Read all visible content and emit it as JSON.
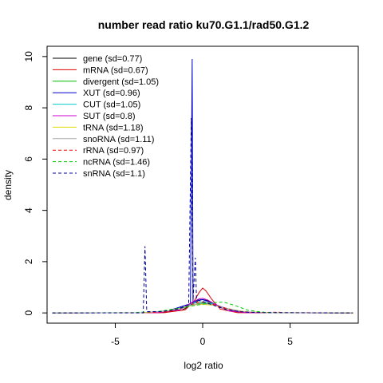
{
  "chart_data": {
    "type": "line",
    "title": "number read ratio ku70.G1.1/rad50.G1.2",
    "xlabel": "log2 ratio",
    "ylabel": "density",
    "xlim": [
      -8.9,
      8.9
    ],
    "ylim": [
      -0.4,
      10.4
    ],
    "xticks": [
      -5,
      0,
      5
    ],
    "xtick_labels": [
      "-5",
      "0",
      "5"
    ],
    "yticks": [
      0,
      2,
      4,
      6,
      8,
      10
    ],
    "ytick_labels": [
      "0",
      "2",
      "4",
      "6",
      "8",
      "10"
    ],
    "legend_position": "top-left",
    "grid": false,
    "series": [
      {
        "name": "gene (sd=0.77)",
        "color": "#000000",
        "dash": false,
        "mu": 0.0,
        "sd": 0.77,
        "points": [
          [
            -8.6,
            0
          ],
          [
            -2.5,
            0.01
          ],
          [
            -1.2,
            0.1
          ],
          [
            -0.6,
            0.33
          ],
          [
            -0.2,
            0.5
          ],
          [
            0.0,
            0.52
          ],
          [
            0.3,
            0.48
          ],
          [
            0.8,
            0.3
          ],
          [
            1.5,
            0.08
          ],
          [
            2.5,
            0.01
          ],
          [
            8.6,
            0
          ]
        ]
      },
      {
        "name": "mRNA (sd=0.67)",
        "color": "#dd0000",
        "dash": false,
        "mu": 0.0,
        "sd": 0.67,
        "points": [
          [
            -8.6,
            0
          ],
          [
            -2.2,
            0.01
          ],
          [
            -1.0,
            0.12
          ],
          [
            -0.5,
            0.45
          ],
          [
            -0.2,
            0.8
          ],
          [
            0.0,
            0.97
          ],
          [
            0.2,
            0.85
          ],
          [
            0.5,
            0.55
          ],
          [
            1.0,
            0.15
          ],
          [
            2.0,
            0.01
          ],
          [
            8.6,
            0
          ]
        ]
      },
      {
        "name": "divergent (sd=1.05)",
        "color": "#00bb00",
        "dash": false,
        "mu": 0.0,
        "sd": 1.05,
        "points": [
          [
            -8.6,
            0
          ],
          [
            -3.2,
            0.01
          ],
          [
            -2.0,
            0.06
          ],
          [
            -1.0,
            0.22
          ],
          [
            -0.3,
            0.36
          ],
          [
            0.0,
            0.38
          ],
          [
            0.5,
            0.34
          ],
          [
            1.2,
            0.2
          ],
          [
            2.2,
            0.05
          ],
          [
            3.5,
            0.01
          ],
          [
            8.6,
            0
          ]
        ]
      },
      {
        "name": "XUT (sd=0.96)",
        "color": "#0000cc",
        "dash": false,
        "mu": 0.0,
        "sd": 0.96,
        "points": [
          [
            -8.6,
            0
          ],
          [
            -3.3,
            0.01
          ],
          [
            -2.0,
            0.08
          ],
          [
            -1.2,
            0.25
          ],
          [
            -0.7,
            0.36
          ],
          [
            -0.6,
            9.9
          ],
          [
            -0.55,
            0.4
          ],
          [
            -0.3,
            0.5
          ],
          [
            0.0,
            0.52
          ],
          [
            0.4,
            0.42
          ],
          [
            1.0,
            0.25
          ],
          [
            2.0,
            0.05
          ],
          [
            3.0,
            0.01
          ],
          [
            8.6,
            0
          ]
        ]
      },
      {
        "name": "CUT (sd=1.05)",
        "color": "#00cccc",
        "dash": false,
        "mu": 0.0,
        "sd": 1.05,
        "points": [
          [
            -8.6,
            0
          ],
          [
            -3.2,
            0.01
          ],
          [
            -2.0,
            0.07
          ],
          [
            -1.0,
            0.25
          ],
          [
            -0.4,
            0.4
          ],
          [
            0.0,
            0.42
          ],
          [
            0.5,
            0.37
          ],
          [
            1.2,
            0.2
          ],
          [
            2.2,
            0.05
          ],
          [
            3.5,
            0.01
          ],
          [
            8.6,
            0
          ]
        ]
      },
      {
        "name": "SUT (sd=0.8)",
        "color": "#cc00cc",
        "dash": false,
        "mu": 0.0,
        "sd": 0.8,
        "points": [
          [
            -8.6,
            0
          ],
          [
            -2.6,
            0.01
          ],
          [
            -1.3,
            0.12
          ],
          [
            -0.6,
            0.42
          ],
          [
            -0.2,
            0.55
          ],
          [
            0.0,
            0.57
          ],
          [
            0.3,
            0.5
          ],
          [
            0.8,
            0.3
          ],
          [
            1.5,
            0.08
          ],
          [
            2.5,
            0.01
          ],
          [
            8.6,
            0
          ]
        ]
      },
      {
        "name": "tRNA (sd=1.18)",
        "color": "#dddd00",
        "dash": false,
        "mu": 0.0,
        "sd": 1.18,
        "points": [
          [
            -8.6,
            0
          ],
          [
            -3.5,
            0.01
          ],
          [
            -2.2,
            0.06
          ],
          [
            -1.2,
            0.2
          ],
          [
            -0.4,
            0.32
          ],
          [
            0.0,
            0.34
          ],
          [
            0.6,
            0.3
          ],
          [
            1.4,
            0.16
          ],
          [
            2.5,
            0.04
          ],
          [
            3.8,
            0.01
          ],
          [
            8.6,
            0
          ]
        ]
      },
      {
        "name": "snoRNA (sd=1.11)",
        "color": "#aaaaaa",
        "dash": false,
        "mu": 0.0,
        "sd": 1.11,
        "points": [
          [
            -8.6,
            0
          ],
          [
            -3.3,
            0.01
          ],
          [
            -2.0,
            0.07
          ],
          [
            -1.0,
            0.24
          ],
          [
            -0.4,
            0.34
          ],
          [
            0.0,
            0.36
          ],
          [
            0.5,
            0.33
          ],
          [
            1.2,
            0.2
          ],
          [
            2.3,
            0.05
          ],
          [
            3.6,
            0.01
          ],
          [
            8.6,
            0
          ]
        ]
      },
      {
        "name": "rRNA (sd=0.97)",
        "color": "#ff0000",
        "dash": true,
        "mu": 0.0,
        "sd": 0.97,
        "points": [
          [
            -8.6,
            0
          ],
          [
            -3.0,
            0.01
          ],
          [
            -1.8,
            0.08
          ],
          [
            -0.9,
            0.28
          ],
          [
            -0.3,
            0.4
          ],
          [
            0.0,
            0.42
          ],
          [
            0.4,
            0.38
          ],
          [
            1.0,
            0.24
          ],
          [
            2.0,
            0.05
          ],
          [
            3.2,
            0.01
          ],
          [
            4.3,
            0.03
          ],
          [
            4.6,
            0.01
          ],
          [
            8.6,
            0
          ]
        ]
      },
      {
        "name": "ncRNA (sd=1.46)",
        "color": "#00cc00",
        "dash": true,
        "mu": 0.0,
        "sd": 1.46,
        "points": [
          [
            -8.6,
            0
          ],
          [
            -4.0,
            0.01
          ],
          [
            -2.5,
            0.06
          ],
          [
            -1.2,
            0.2
          ],
          [
            -0.2,
            0.32
          ],
          [
            0.6,
            0.4
          ],
          [
            1.2,
            0.42
          ],
          [
            1.8,
            0.3
          ],
          [
            2.6,
            0.1
          ],
          [
            3.6,
            0.02
          ],
          [
            4.5,
            0.01
          ],
          [
            8.6,
            0
          ]
        ]
      },
      {
        "name": "snRNA (sd=1.1)",
        "color": "#000099",
        "dash": true,
        "mu": 0.0,
        "sd": 1.1,
        "points": [
          [
            -8.6,
            0
          ],
          [
            -3.4,
            0.0
          ],
          [
            -3.3,
            2.6
          ],
          [
            -3.2,
            0.05
          ],
          [
            -2.4,
            0.05
          ],
          [
            -1.6,
            0.12
          ],
          [
            -0.8,
            0.3
          ],
          [
            -0.65,
            7.6
          ],
          [
            -0.55,
            0.5
          ],
          [
            -0.42,
            2.15
          ],
          [
            -0.35,
            0.5
          ],
          [
            0.0,
            0.45
          ],
          [
            0.6,
            0.3
          ],
          [
            1.4,
            0.12
          ],
          [
            2.4,
            0.03
          ],
          [
            3.6,
            0.01
          ],
          [
            8.6,
            0
          ]
        ]
      }
    ]
  }
}
